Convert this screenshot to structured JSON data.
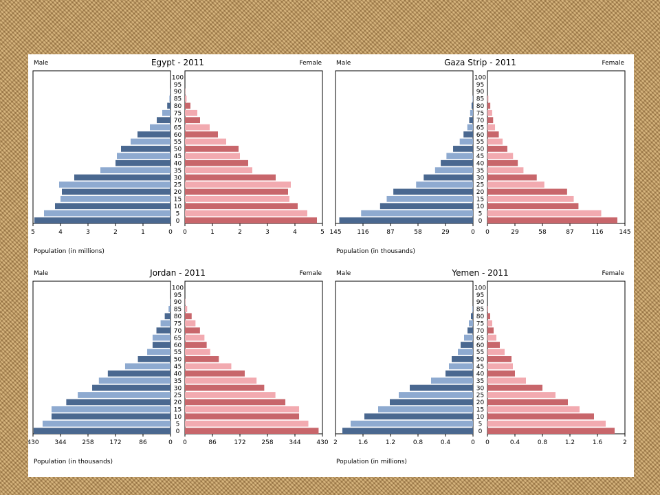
{
  "slide": {
    "background": "#ffffff"
  },
  "colors": {
    "male_dark": "#4a6890",
    "male_light": "#8eaad0",
    "female_dark": "#c8666b",
    "female_light": "#f2aab0"
  },
  "chart_data": [
    {
      "type": "bar",
      "title": "Egypt - 2011",
      "left_label": "Male",
      "right_label": "Female",
      "footer": "Population (in millions)",
      "categories": [
        "0",
        "5",
        "10",
        "15",
        "20",
        "25",
        "30",
        "35",
        "40",
        "45",
        "50",
        "55",
        "60",
        "65",
        "70",
        "75",
        "80",
        "85",
        "90",
        "95",
        "100"
      ],
      "xlim": [
        0,
        5
      ],
      "male_ticks": [
        "5",
        "4",
        "3",
        "2",
        "1",
        "0"
      ],
      "female_ticks": [
        "0",
        "1",
        "2",
        "3",
        "4",
        "5"
      ],
      "series": [
        {
          "name": "Male",
          "values": [
            4.95,
            4.6,
            4.2,
            4.0,
            3.95,
            4.05,
            3.5,
            2.55,
            2.0,
            1.95,
            1.8,
            1.45,
            1.2,
            0.75,
            0.5,
            0.3,
            0.12,
            0.04,
            0.01,
            0.0,
            0.0
          ]
        },
        {
          "name": "Female",
          "values": [
            4.8,
            4.45,
            4.1,
            3.8,
            3.75,
            3.85,
            3.3,
            2.45,
            2.3,
            2.0,
            1.95,
            1.5,
            1.2,
            0.9,
            0.55,
            0.45,
            0.2,
            0.06,
            0.01,
            0.0,
            0.0
          ]
        }
      ]
    },
    {
      "type": "bar",
      "title": "Gaza Strip - 2011",
      "left_label": "Male",
      "right_label": "Female",
      "footer": "Population (in thousands)",
      "categories": [
        "0",
        "5",
        "10",
        "15",
        "20",
        "25",
        "30",
        "35",
        "40",
        "45",
        "50",
        "55",
        "60",
        "65",
        "70",
        "75",
        "80",
        "85",
        "90",
        "95",
        "100"
      ],
      "xlim": [
        0,
        145
      ],
      "male_ticks": [
        "145",
        "116",
        "87",
        "58",
        "29",
        "0"
      ],
      "female_ticks": [
        "0",
        "29",
        "58",
        "87",
        "116",
        "145"
      ],
      "series": [
        {
          "name": "Male",
          "values": [
            141,
            118,
            98,
            91,
            84,
            60,
            52,
            40,
            34,
            28,
            21,
            14,
            10,
            6,
            4,
            3,
            1.5,
            0.5,
            0,
            0,
            0
          ]
        },
        {
          "name": "Female",
          "values": [
            137,
            120,
            96,
            91,
            84,
            60,
            52,
            38,
            32,
            27,
            21,
            16,
            12,
            8,
            6,
            5,
            3,
            1,
            0,
            0,
            0
          ]
        }
      ]
    },
    {
      "type": "bar",
      "title": "Jordan - 2011",
      "left_label": "Male",
      "right_label": "Female",
      "footer": "Population (in thousands)",
      "categories": [
        "0",
        "5",
        "10",
        "15",
        "20",
        "25",
        "30",
        "35",
        "40",
        "45",
        "50",
        "55",
        "60",
        "65",
        "70",
        "75",
        "80",
        "85",
        "90",
        "95",
        "100"
      ],
      "xlim": [
        0,
        430
      ],
      "male_ticks": [
        "430",
        "344",
        "258",
        "172",
        "86",
        "0"
      ],
      "female_ticks": [
        "0",
        "86",
        "172",
        "258",
        "344",
        "430"
      ],
      "series": [
        {
          "name": "Male",
          "values": [
            428,
            400,
            372,
            372,
            326,
            290,
            245,
            224,
            196,
            142,
            102,
            73,
            56,
            56,
            44,
            31,
            18,
            6,
            1,
            0,
            0
          ]
        },
        {
          "name": "Female",
          "values": [
            418,
            386,
            357,
            357,
            314,
            283,
            248,
            224,
            187,
            145,
            106,
            79,
            68,
            61,
            47,
            33,
            21,
            7,
            1,
            0,
            0
          ]
        }
      ]
    },
    {
      "type": "bar",
      "title": "Yemen - 2011",
      "left_label": "Male",
      "right_label": "Female",
      "footer": "Population (in millions)",
      "categories": [
        "0",
        "5",
        "10",
        "15",
        "20",
        "25",
        "30",
        "35",
        "40",
        "45",
        "50",
        "55",
        "60",
        "65",
        "70",
        "75",
        "80",
        "85",
        "90",
        "95",
        "100"
      ],
      "xlim": [
        0,
        2
      ],
      "male_ticks": [
        "2",
        "1.6",
        "1.2",
        "0.8",
        "0.4",
        "0"
      ],
      "female_ticks": [
        "0",
        "0.4",
        "0.8",
        "1.2",
        "1.6",
        "2"
      ],
      "series": [
        {
          "name": "Male",
          "values": [
            1.9,
            1.78,
            1.58,
            1.38,
            1.21,
            1.08,
            0.92,
            0.61,
            0.4,
            0.35,
            0.31,
            0.22,
            0.18,
            0.13,
            0.08,
            0.06,
            0.03,
            0.01,
            0,
            0,
            0
          ]
        },
        {
          "name": "Female",
          "values": [
            1.85,
            1.72,
            1.55,
            1.34,
            1.17,
            0.99,
            0.8,
            0.56,
            0.4,
            0.37,
            0.35,
            0.25,
            0.18,
            0.13,
            0.09,
            0.07,
            0.04,
            0.01,
            0,
            0,
            0
          ]
        }
      ]
    }
  ]
}
